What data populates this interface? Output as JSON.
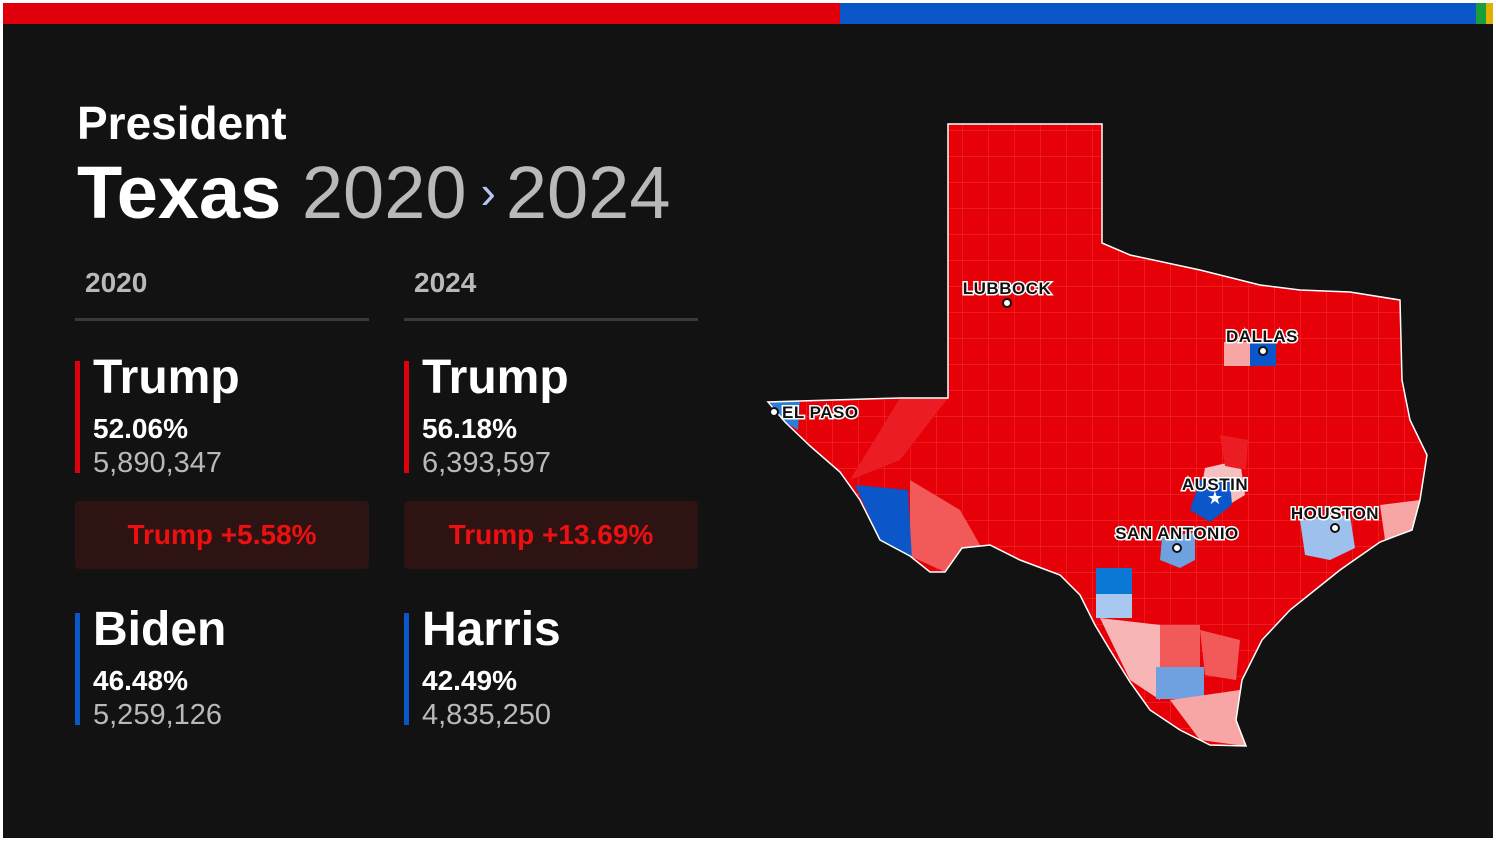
{
  "header": {
    "office": "President",
    "state": "Texas",
    "year_from": "2020",
    "year_to": "2024"
  },
  "columns": [
    {
      "year": "2020",
      "winner": {
        "name": "Trump",
        "pct": "52.06%",
        "votes": "5,890,347"
      },
      "margin": "Trump +5.58%",
      "loser": {
        "name": "Biden",
        "pct": "46.48%",
        "votes": "5,259,126"
      }
    },
    {
      "year": "2024",
      "winner": {
        "name": "Trump",
        "pct": "56.18%",
        "votes": "6,393,597"
      },
      "margin": "Trump +13.69%",
      "loser": {
        "name": "Harris",
        "pct": "42.49%",
        "votes": "4,835,250"
      }
    }
  ],
  "map": {
    "cities": [
      "LUBBOCK",
      "DALLAS",
      "EL PASO",
      "AUSTIN",
      "SAN ANTONIO",
      "HOUSTON"
    ]
  }
}
